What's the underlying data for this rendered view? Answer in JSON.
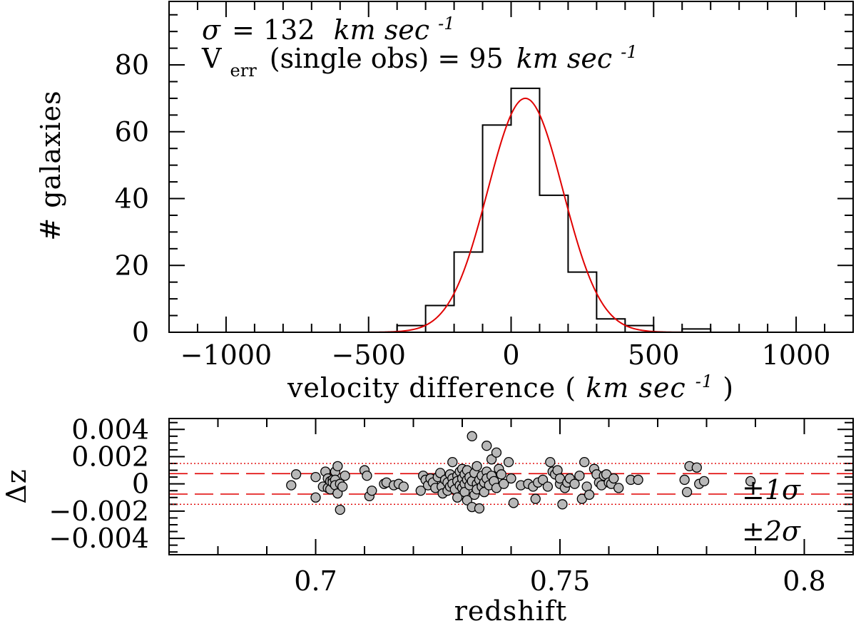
{
  "chart_data": [
    {
      "type": "histogram",
      "name": "velocity-histogram",
      "xlabel_prefix": "velocity difference (",
      "xlabel_unit": "km sec",
      "xlabel_exp": "-1",
      "xlabel_suffix": ")",
      "ylabel": "# galaxies",
      "xlim": [
        -1200,
        1200
      ],
      "ylim": [
        0,
        99
      ],
      "xticks": [
        -1000,
        -500,
        0,
        500,
        1000
      ],
      "xtick_labels": [
        "−1000",
        "−500",
        "0",
        "500",
        "1000"
      ],
      "yticks": [
        0,
        20,
        40,
        60,
        80
      ],
      "ytick_labels": [
        "0",
        "20",
        "40",
        "60",
        "80"
      ],
      "bin_width": 100,
      "bins": [
        {
          "x0": -400,
          "x1": -300,
          "count": 2
        },
        {
          "x0": -300,
          "x1": -200,
          "count": 8
        },
        {
          "x0": -200,
          "x1": -100,
          "count": 24
        },
        {
          "x0": -100,
          "x1": 0,
          "count": 62
        },
        {
          "x0": 0,
          "x1": 100,
          "count": 73
        },
        {
          "x0": 100,
          "x1": 200,
          "count": 41
        },
        {
          "x0": 200,
          "x1": 300,
          "count": 18
        },
        {
          "x0": 300,
          "x1": 400,
          "count": 4
        },
        {
          "x0": 400,
          "x1": 500,
          "count": 2
        },
        {
          "x0": 600,
          "x1": 700,
          "count": 1
        }
      ],
      "gaussian_fit": {
        "mean": 50,
        "sigma": 132,
        "amplitude": 70,
        "color": "#e00000"
      },
      "annotation_sigma_symbol": "σ",
      "annotation_sigma_eq": "= 132",
      "annotation_sigma_unit": "km sec",
      "annotation_sigma_exp": "-1",
      "annotation_verr_main": "V",
      "annotation_verr_sub": "err",
      "annotation_verr_text": "(single obs) = 95",
      "annotation_verr_unit": "km sec",
      "annotation_verr_exp": "-1"
    },
    {
      "type": "scatter",
      "name": "redshift-residuals",
      "xlabel": "redshift",
      "ylabel": "Δz",
      "xlim": [
        0.67,
        0.81
      ],
      "ylim": [
        -0.0052,
        0.0048
      ],
      "xticks": [
        0.7,
        0.75,
        0.8
      ],
      "xtick_labels": [
        "0.7",
        "0.75",
        "0.8"
      ],
      "yticks": [
        -0.004,
        -0.002,
        0,
        0.002,
        0.004
      ],
      "ytick_labels": [
        "−0.004",
        "−0.002",
        "0",
        "0.002",
        "0.004"
      ],
      "sigma_lines": [
        {
          "value": 0.00075,
          "style": "dashed"
        },
        {
          "value": -0.00075,
          "style": "dashed"
        },
        {
          "value": 0.0015,
          "style": "dotted"
        },
        {
          "value": -0.0015,
          "style": "dotted"
        }
      ],
      "line_color": "#e00000",
      "marker_color": "#b8b8b8",
      "label_1sigma": "±1σ",
      "label_2sigma": "±2σ",
      "points": [
        [
          0.695,
          -0.0001
        ],
        [
          0.696,
          0.0007
        ],
        [
          0.7,
          0.0005
        ],
        [
          0.7,
          -0.001
        ],
        [
          0.7015,
          -0.0002
        ],
        [
          0.702,
          0.0009
        ],
        [
          0.7025,
          0.0004
        ],
        [
          0.7025,
          -0.0003
        ],
        [
          0.703,
          0.0002
        ],
        [
          0.703,
          -0.0004
        ],
        [
          0.7035,
          0.0003
        ],
        [
          0.7035,
          0.0001
        ],
        [
          0.704,
          0.0009
        ],
        [
          0.704,
          0.0003
        ],
        [
          0.704,
          -0.0001
        ],
        [
          0.7045,
          -0.0007
        ],
        [
          0.7045,
          0.0013
        ],
        [
          0.705,
          -0.0019
        ],
        [
          0.705,
          0.0
        ],
        [
          0.7055,
          -0.0002
        ],
        [
          0.706,
          0.0006
        ],
        [
          0.71,
          0.001
        ],
        [
          0.7105,
          0.0006
        ],
        [
          0.711,
          -0.0009
        ],
        [
          0.7115,
          -0.0005
        ],
        [
          0.714,
          0.0
        ],
        [
          0.7145,
          0.0001
        ],
        [
          0.716,
          -0.0001
        ],
        [
          0.717,
          0.0
        ],
        [
          0.718,
          -0.0002
        ],
        [
          0.7215,
          -0.0005
        ],
        [
          0.722,
          0.0006
        ],
        [
          0.7225,
          0.0003
        ],
        [
          0.723,
          -0.0001
        ],
        [
          0.7235,
          0.0004
        ],
        [
          0.724,
          0.0001
        ],
        [
          0.7245,
          -0.0003
        ],
        [
          0.725,
          0.0005
        ],
        [
          0.7255,
          0.0008
        ],
        [
          0.7258,
          -0.0002
        ],
        [
          0.726,
          -0.0007
        ],
        [
          0.7265,
          0.0003
        ],
        [
          0.727,
          0.0001
        ],
        [
          0.727,
          -0.0005
        ],
        [
          0.7275,
          0.0007
        ],
        [
          0.7275,
          -0.0002
        ],
        [
          0.728,
          0.0016
        ],
        [
          0.728,
          0.0004
        ],
        [
          0.728,
          0.0
        ],
        [
          0.7285,
          -0.0004
        ],
        [
          0.729,
          -0.001
        ],
        [
          0.729,
          0.0006
        ],
        [
          0.729,
          0.0002
        ],
        [
          0.7295,
          -0.0001
        ],
        [
          0.7295,
          0.0009
        ],
        [
          0.73,
          0.0011
        ],
        [
          0.73,
          0.0004
        ],
        [
          0.73,
          -0.0003
        ],
        [
          0.7305,
          0.0
        ],
        [
          0.7305,
          0.0007
        ],
        [
          0.7305,
          -0.0006
        ],
        [
          0.731,
          -0.0012
        ],
        [
          0.731,
          0.0003
        ],
        [
          0.731,
          0.001
        ],
        [
          0.7315,
          -0.0001
        ],
        [
          0.7315,
          0.0005
        ],
        [
          0.732,
          0.0035
        ],
        [
          0.732,
          -0.0017
        ],
        [
          0.732,
          0.0002
        ],
        [
          0.7325,
          -0.0008
        ],
        [
          0.7325,
          0.0008
        ],
        [
          0.733,
          0.0
        ],
        [
          0.733,
          -0.0004
        ],
        [
          0.733,
          0.0013
        ],
        [
          0.7335,
          -0.0018
        ],
        [
          0.7335,
          0.0003
        ],
        [
          0.734,
          0.0006
        ],
        [
          0.734,
          -0.0002
        ],
        [
          0.7345,
          0.0001
        ],
        [
          0.7345,
          -0.0006
        ],
        [
          0.735,
          0.0028
        ],
        [
          0.735,
          0.0009
        ],
        [
          0.735,
          0.0004
        ],
        [
          0.7355,
          -0.0001
        ],
        [
          0.736,
          0.0018
        ],
        [
          0.736,
          0.0006
        ],
        [
          0.7365,
          0.0002
        ],
        [
          0.737,
          0.0023
        ],
        [
          0.737,
          -0.0003
        ],
        [
          0.7375,
          0.0011
        ],
        [
          0.738,
          0.0007
        ],
        [
          0.7385,
          0.0
        ],
        [
          0.7395,
          0.0016
        ],
        [
          0.74,
          0.0004
        ],
        [
          0.7405,
          -0.0014
        ],
        [
          0.742,
          -0.0001
        ],
        [
          0.7435,
          0.0
        ],
        [
          0.7445,
          -0.0002
        ],
        [
          0.745,
          -0.0011
        ],
        [
          0.7455,
          0.0001
        ],
        [
          0.7465,
          0.0003
        ],
        [
          0.7475,
          -0.0002
        ],
        [
          0.748,
          0.0016
        ],
        [
          0.7485,
          0.0009
        ],
        [
          0.749,
          0.0007
        ],
        [
          0.7495,
          0.001
        ],
        [
          0.75,
          0.0
        ],
        [
          0.75,
          0.0004
        ],
        [
          0.7505,
          -0.0015
        ],
        [
          0.751,
          -0.0003
        ],
        [
          0.7515,
          0.0001
        ],
        [
          0.752,
          0.0004
        ],
        [
          0.753,
          0.0
        ],
        [
          0.754,
          0.0006
        ],
        [
          0.7545,
          -0.0011
        ],
        [
          0.755,
          0.0016
        ],
        [
          0.7555,
          -0.0002
        ],
        [
          0.756,
          -0.0008
        ],
        [
          0.757,
          0.0011
        ],
        [
          0.7575,
          0.0007
        ],
        [
          0.758,
          0.0001
        ],
        [
          0.7585,
          -0.0001
        ],
        [
          0.759,
          0.0006
        ],
        [
          0.7595,
          0.0007
        ],
        [
          0.76,
          0.0001
        ],
        [
          0.7605,
          0.0
        ],
        [
          0.761,
          0.0004
        ],
        [
          0.762,
          -0.0003
        ],
        [
          0.7645,
          0.0003
        ],
        [
          0.766,
          0.0003
        ],
        [
          0.7755,
          0.0003
        ],
        [
          0.776,
          -0.0006
        ],
        [
          0.7765,
          0.0013
        ],
        [
          0.778,
          0.0012
        ],
        [
          0.7785,
          0.0
        ],
        [
          0.7795,
          0.0002
        ],
        [
          0.789,
          0.0002
        ]
      ]
    }
  ]
}
